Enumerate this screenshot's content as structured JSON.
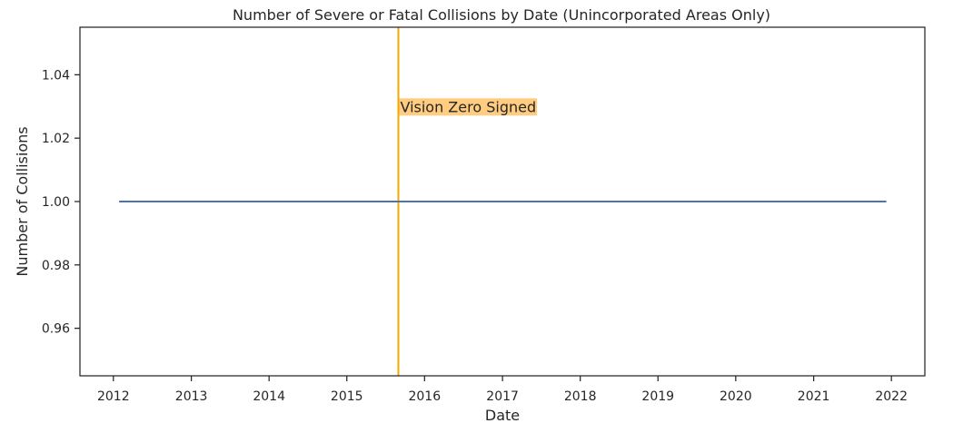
{
  "chart_data": {
    "type": "line",
    "title": "Number of Severe or Fatal Collisions by Date (Unincorporated Areas Only)",
    "xlabel": "Date",
    "ylabel": "Number of Collisions",
    "xlim": [
      "2011-07-28",
      "2022-06-07"
    ],
    "ylim": [
      0.945,
      1.055
    ],
    "x_ticks": [
      "2012",
      "2013",
      "2014",
      "2015",
      "2016",
      "2017",
      "2018",
      "2019",
      "2020",
      "2021",
      "2022"
    ],
    "y_ticks": [
      "0.96",
      "0.98",
      "1.00",
      "1.02",
      "1.04"
    ],
    "grid": false,
    "series": [
      {
        "color": "#4c72b0",
        "x": [
          "2012-01-28",
          "2021-12-08"
        ],
        "y": [
          1.0,
          1.0
        ]
      }
    ],
    "annotations": [
      {
        "type": "vline",
        "x": "2015-08-31",
        "color": "#f5a800",
        "label": "Vision Zero Signed",
        "label_y": 1.03,
        "label_background": "#ffcc80"
      }
    ]
  }
}
